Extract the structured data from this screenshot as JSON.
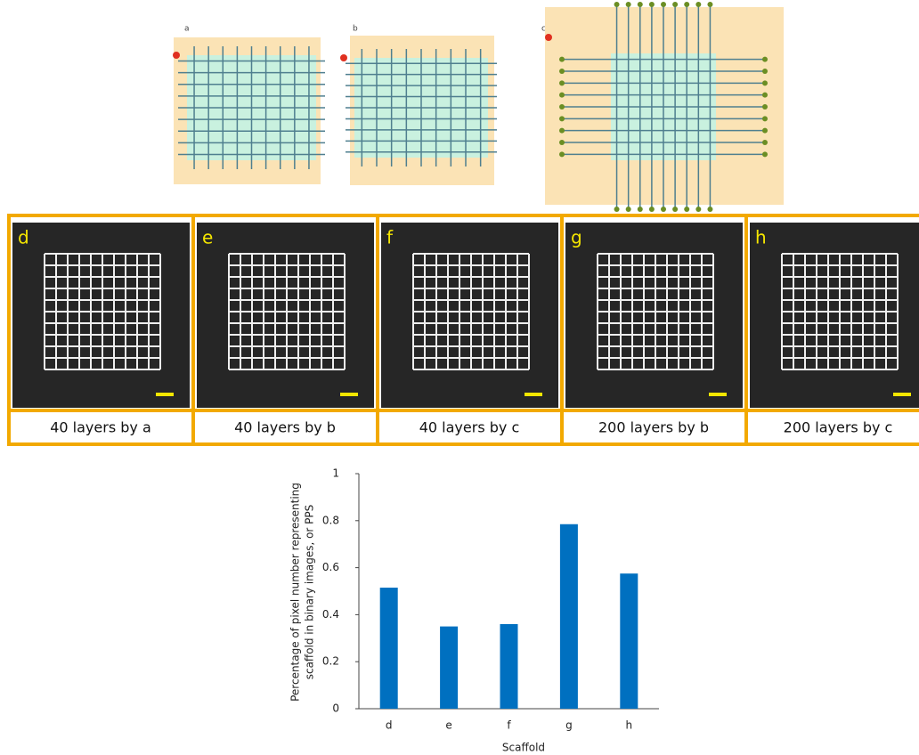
{
  "diagrams": [
    {
      "label": "a"
    },
    {
      "label": "b"
    },
    {
      "label": "c"
    }
  ],
  "photos": [
    {
      "label": "d",
      "caption": "40 layers by a"
    },
    {
      "label": "e",
      "caption": "40 layers by b"
    },
    {
      "label": "f",
      "caption": "40 layers by c"
    },
    {
      "label": "g",
      "caption": "200 layers by b"
    },
    {
      "label": "h",
      "caption": "200 layers by c"
    }
  ],
  "chart_data": {
    "type": "bar",
    "categories": [
      "d",
      "e",
      "f",
      "g",
      "h"
    ],
    "values": [
      0.515,
      0.35,
      0.36,
      0.785,
      0.575
    ],
    "color": "#0070c0",
    "ylim": [
      0,
      1
    ],
    "yticks": [
      0,
      0.2,
      0.4,
      0.6,
      0.8,
      1
    ],
    "x_label": "Scaffold",
    "y_label": [
      "Percentage of pixel number representing",
      "scaffold in binary images, or PPS"
    ]
  }
}
